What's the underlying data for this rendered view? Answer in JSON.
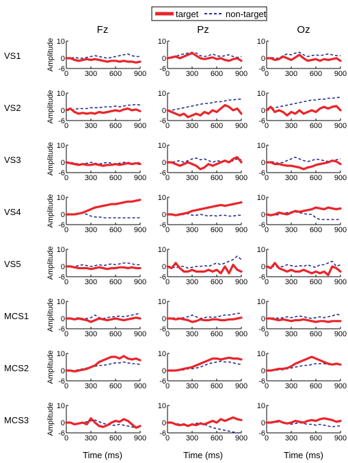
{
  "chart_data": {
    "type": "line",
    "columns": [
      "Fz",
      "Pz",
      "Oz"
    ],
    "rows": [
      "VS1",
      "VS2",
      "VS3",
      "VS4",
      "VS5",
      "MCS1",
      "MCS2",
      "MCS3"
    ],
    "xlabel": "Time (ms)",
    "ylabel": "Amplitude",
    "xlim": [
      0,
      900
    ],
    "ylim": [
      -6,
      10
    ],
    "xticks": [
      0,
      300,
      600,
      900
    ],
    "yticks": [
      -6,
      0,
      10
    ],
    "legend": {
      "position": "top-center",
      "entries": [
        "target",
        "non-target"
      ]
    },
    "colors": {
      "target": "#e8262b",
      "non-target": "#232c8f"
    },
    "x": [
      0,
      50,
      100,
      150,
      200,
      250,
      300,
      350,
      400,
      450,
      500,
      550,
      600,
      650,
      700,
      750,
      800,
      850,
      900
    ],
    "panels": [
      {
        "row": "VS1",
        "channel": "Fz",
        "target": [
          0,
          0,
          -1,
          -1.5,
          -1,
          -0.5,
          -1,
          -0.5,
          -1,
          -1.5,
          -2,
          -1.5,
          -1.5,
          -2,
          -1.5,
          -2,
          -2,
          -2.5,
          -2
        ],
        "non_target": [
          0,
          0,
          0.5,
          0,
          0,
          0.5,
          1,
          1.5,
          1,
          0.5,
          0,
          0.5,
          1,
          1.5,
          2,
          2.5,
          1.5,
          1,
          1
        ]
      },
      {
        "row": "VS1",
        "channel": "Pz",
        "target": [
          0,
          0.5,
          1,
          0,
          1,
          2,
          3,
          1.5,
          0,
          -0.5,
          0,
          0.5,
          -0.5,
          0,
          -1,
          -1.5,
          -0.5,
          0,
          -1.5
        ],
        "non_target": [
          0,
          0,
          1,
          2,
          2.5,
          3,
          3.5,
          3,
          1.5,
          1,
          1.5,
          2.5,
          1.5,
          1,
          1.5,
          2,
          1,
          0.5,
          1
        ]
      },
      {
        "row": "VS1",
        "channel": "Oz",
        "target": [
          0,
          0,
          -1,
          -0.5,
          1,
          0,
          -1,
          0.5,
          2,
          0,
          -1.5,
          -1,
          -0.5,
          -1.5,
          -0.5,
          -1,
          -0.5,
          0,
          -1.5
        ],
        "non_target": [
          0,
          0.5,
          0,
          0,
          1.5,
          2.5,
          2,
          3,
          3.5,
          2,
          1,
          1.5,
          2,
          1.5,
          2,
          2.5,
          2,
          1.5,
          1.5
        ]
      },
      {
        "row": "VS2",
        "channel": "Fz",
        "target": [
          0,
          1,
          -1,
          -2,
          -1.5,
          -2,
          -1.5,
          -2,
          -1,
          -1.5,
          -1,
          -0.5,
          0,
          -0.5,
          0.5,
          1,
          0,
          0.5,
          -0.5
        ],
        "non_target": [
          0,
          0,
          0.5,
          1,
          1,
          1,
          1.5,
          1.5,
          1.5,
          2,
          2,
          2,
          2.5,
          2,
          2.5,
          3,
          3,
          3.5,
          3
        ]
      },
      {
        "row": "VS2",
        "channel": "Pz",
        "target": [
          0,
          -1,
          -2,
          -3,
          -2,
          -4,
          -3,
          -2,
          -3,
          -1,
          -2,
          0,
          -1,
          1,
          3,
          2,
          0,
          1,
          -2
        ],
        "non_target": [
          0,
          0,
          0.5,
          1,
          1.5,
          2,
          2.5,
          3,
          3.5,
          4,
          4,
          4.5,
          5,
          5,
          5.5,
          6,
          6,
          6.5,
          6.5
        ]
      },
      {
        "row": "VS2",
        "channel": "Oz",
        "target": [
          0,
          2,
          -1,
          0,
          -1,
          -3,
          -1,
          -2,
          0,
          -2,
          -1,
          0,
          -1,
          1,
          2,
          1,
          2,
          2.5,
          0
        ],
        "non_target": [
          0,
          1,
          1.5,
          2,
          2.5,
          3,
          3.5,
          4,
          4.5,
          5,
          5.5,
          6,
          6,
          6.5,
          6.5,
          7,
          7,
          7.5,
          7.5
        ]
      },
      {
        "row": "VS3",
        "channel": "Fz",
        "target": [
          0,
          -0.5,
          -1,
          -1.5,
          -1,
          -1.5,
          -1.5,
          -1,
          -1.5,
          -2,
          -1.5,
          -1.5,
          -1,
          -1.5,
          -1,
          -0.5,
          -1,
          -0.5,
          -1
        ],
        "non_target": [
          0,
          0,
          -0.5,
          -1,
          -1,
          -0.5,
          0,
          -0.5,
          -1,
          -0.5,
          0,
          -0.5,
          -1,
          -0.5,
          0,
          0,
          -0.5,
          -0.5,
          0
        ]
      },
      {
        "row": "VS3",
        "channel": "Pz",
        "target": [
          0,
          0,
          -1,
          -2,
          -1,
          0,
          -1,
          -2,
          -4,
          -3,
          -1,
          -2,
          -1,
          0,
          1,
          0,
          2,
          3,
          0
        ],
        "non_target": [
          0,
          0,
          0.5,
          1,
          0,
          1,
          2,
          2.5,
          1.5,
          2,
          1,
          0,
          1,
          0.5,
          1,
          0,
          1,
          2,
          1.5
        ]
      },
      {
        "row": "VS3",
        "channel": "Oz",
        "target": [
          0,
          0,
          -1,
          -1,
          -1.5,
          -2,
          -2,
          -2.5,
          -3,
          -4,
          -3,
          -2.5,
          -1.5,
          -1,
          -0.5,
          0,
          1,
          0.5,
          -1
        ],
        "non_target": [
          0,
          0.5,
          0,
          -0.5,
          0,
          1,
          2,
          3,
          2,
          1,
          0.5,
          1,
          2,
          1.5,
          1,
          0.5,
          1,
          1.5,
          2
        ]
      },
      {
        "row": "VS4",
        "channel": "Fz",
        "target": [
          0,
          0,
          0,
          0.5,
          1,
          2,
          3,
          4,
          4.5,
          5,
          5.5,
          6,
          6,
          6.5,
          7,
          7.5,
          7.5,
          8,
          8.5
        ],
        "non_target": [
          0,
          0,
          0,
          0.5,
          1,
          0,
          -1,
          -1.5,
          -1.5,
          -2,
          -2,
          -2,
          -2,
          -2,
          -2,
          -2,
          -2,
          -2,
          -2
        ]
      },
      {
        "row": "VS4",
        "channel": "Pz",
        "target": [
          0,
          0,
          -0.5,
          0,
          0.5,
          1,
          2,
          2.5,
          3,
          3.5,
          4,
          4.5,
          5,
          5.5,
          5,
          5.5,
          6,
          6.5,
          7
        ],
        "non_target": [
          0,
          0,
          -0.5,
          -0.5,
          0,
          0.5,
          -0.5,
          -0.5,
          0,
          -0.5,
          -1,
          -0.5,
          -1,
          -0.5,
          -0.5,
          -1,
          -1,
          -0.5,
          -0.5
        ]
      },
      {
        "row": "VS4",
        "channel": "Oz",
        "target": [
          0,
          -0.5,
          0,
          1,
          0.5,
          0,
          1,
          2,
          1.5,
          2,
          2.5,
          3,
          4,
          3.5,
          3,
          4,
          3.5,
          3,
          3.5
        ],
        "non_target": [
          0,
          0,
          -0.5,
          0,
          0.5,
          1,
          1.5,
          1.5,
          1,
          0.5,
          0,
          0,
          -2,
          -3,
          -3,
          -3,
          -3,
          -3,
          -3
        ]
      },
      {
        "row": "VS5",
        "channel": "Fz",
        "target": [
          0,
          0,
          -0.5,
          -1,
          -1,
          -1,
          -1.5,
          -1,
          -0.5,
          -1,
          -1.5,
          -1,
          -1,
          -0.5,
          -0.5,
          -1,
          -0.5,
          -1,
          -1
        ],
        "non_target": [
          0,
          0,
          0,
          0.5,
          1,
          0.5,
          0,
          0.5,
          1,
          0.5,
          1,
          1.5,
          1,
          1.5,
          2,
          2,
          1.5,
          1,
          1
        ]
      },
      {
        "row": "VS5",
        "channel": "Pz",
        "target": [
          0,
          -1,
          2,
          -1,
          -3,
          -3,
          -2,
          -3,
          -3,
          -3,
          -2,
          -3,
          -2,
          -4,
          0,
          -4,
          1,
          -2,
          -3
        ],
        "non_target": [
          0,
          0,
          -1,
          0,
          0,
          -1,
          -0.5,
          0,
          0,
          0.5,
          0,
          1,
          2,
          1,
          2,
          3,
          4,
          6,
          4
        ]
      },
      {
        "row": "VS5",
        "channel": "Oz",
        "target": [
          0,
          -1,
          2,
          -1,
          -2,
          -3,
          -2,
          -3,
          -3,
          -2,
          -3,
          -4,
          -3,
          -4,
          -3,
          -5,
          0,
          -1,
          -3
        ],
        "non_target": [
          0,
          0,
          0,
          -0.5,
          0,
          1,
          0.5,
          0,
          0.5,
          0,
          1,
          0,
          -0.5,
          1,
          1,
          2,
          3,
          0,
          1
        ]
      },
      {
        "row": "MCS1",
        "channel": "Fz",
        "target": [
          0,
          0,
          -0.5,
          0,
          -0.5,
          -1,
          -2,
          -1,
          0,
          -0.5,
          -1,
          -0.5,
          0,
          -0.5,
          -1,
          -0.5,
          0,
          0.5,
          0
        ],
        "non_target": [
          0,
          0,
          0,
          0.5,
          0,
          0,
          0.5,
          2,
          0.5,
          0,
          0.5,
          1,
          1,
          1.5,
          1,
          1.5,
          2,
          2.5,
          3
        ]
      },
      {
        "row": "MCS1",
        "channel": "Pz",
        "target": [
          0,
          0,
          -0.5,
          0,
          -0.5,
          -1,
          -2,
          -1.5,
          -0.5,
          -1,
          -1,
          -0.5,
          -0.5,
          -1,
          -1,
          -0.5,
          -0.5,
          0,
          0.5
        ],
        "non_target": [
          0,
          0,
          0.5,
          0,
          0.5,
          1,
          2,
          1,
          0,
          0.5,
          1,
          0.5,
          1,
          1.5,
          2,
          2,
          2.5,
          3,
          3
        ]
      },
      {
        "row": "MCS1",
        "channel": "Oz",
        "target": [
          0,
          0,
          -0.5,
          -1,
          -0.5,
          -1,
          -1.5,
          -1,
          -1,
          -0.5,
          -1,
          -1.5,
          -2,
          -1.5,
          -1.5,
          -2,
          -1.5,
          -1.5,
          -1.5
        ],
        "non_target": [
          0,
          0,
          0.5,
          0,
          0.5,
          1,
          0.5,
          1,
          1.5,
          1,
          0.5,
          0,
          0.5,
          1,
          0.5,
          1,
          1.5,
          2.5,
          2
        ]
      },
      {
        "row": "MCS2",
        "channel": "Fz",
        "target": [
          0,
          0,
          -0.5,
          0,
          0.5,
          1,
          2,
          3,
          5,
          6,
          7,
          8,
          8,
          7,
          8.5,
          7,
          6.5,
          7,
          6
        ],
        "non_target": [
          0,
          0,
          0,
          0.5,
          1,
          1.5,
          2,
          2.5,
          3,
          3,
          3.5,
          4,
          4.5,
          4.5,
          5,
          4.5,
          4,
          4,
          3.5
        ]
      },
      {
        "row": "MCS2",
        "channel": "Pz",
        "target": [
          0,
          0,
          0,
          0.5,
          1,
          1.5,
          2,
          3,
          4,
          5,
          6,
          7,
          7,
          6.5,
          7,
          7.5,
          7,
          7,
          6.5
        ],
        "non_target": [
          0,
          0,
          0,
          0,
          0.5,
          1,
          1,
          1.5,
          2,
          3,
          4,
          4.5,
          5,
          5.5,
          5,
          5,
          4.5,
          4,
          3.5
        ]
      },
      {
        "row": "MCS2",
        "channel": "Oz",
        "target": [
          0,
          0,
          0.5,
          1,
          1,
          1.5,
          2.5,
          4,
          5,
          6,
          7,
          8,
          7,
          6,
          5,
          4,
          3.5,
          4,
          3.5
        ],
        "non_target": [
          0,
          0,
          0,
          0.5,
          0.5,
          1,
          1.5,
          2,
          2.5,
          3,
          3,
          3.5,
          4,
          4,
          4,
          3.5,
          3.5,
          3.5,
          3.5
        ]
      },
      {
        "row": "MCS3",
        "channel": "Fz",
        "target": [
          0,
          0,
          -1,
          -0.5,
          0,
          -1,
          2.5,
          0,
          -2,
          -2.5,
          -1.5,
          0,
          1,
          0.5,
          2,
          1,
          -1,
          -3,
          -2
        ],
        "non_target": [
          0,
          0,
          -0.5,
          -1,
          0,
          0.5,
          1,
          1.5,
          0.5,
          -0.5,
          -1,
          -1.5,
          -1.5,
          -1,
          -1.5,
          -2,
          -2.5,
          -3,
          -3
        ]
      },
      {
        "row": "MCS3",
        "channel": "Pz",
        "target": [
          0,
          0,
          -1,
          -1.5,
          -1,
          -2,
          -1,
          -1.5,
          -0.5,
          -1,
          0,
          1,
          0,
          2,
          1,
          2,
          3,
          2,
          1.5
        ],
        "non_target": [
          0,
          0,
          -0.5,
          -1,
          -1.5,
          -2,
          -1,
          -0.5,
          0,
          -1,
          -2,
          -3,
          -3.5,
          -4,
          -4.5,
          -5,
          -5.5,
          -6,
          -6
        ]
      },
      {
        "row": "MCS3",
        "channel": "Oz",
        "target": [
          0,
          0,
          0.5,
          1,
          0,
          -0.5,
          0,
          1,
          0.5,
          0,
          1,
          1.5,
          1,
          2,
          2.5,
          2,
          1.5,
          0.5,
          1
        ],
        "non_target": [
          0,
          0,
          0,
          0.5,
          0,
          -0.5,
          -1,
          -0.5,
          0,
          -0.5,
          -1,
          -1,
          -1.5,
          -1,
          -1.5,
          -2,
          -2.5,
          -2,
          -2
        ]
      }
    ]
  }
}
